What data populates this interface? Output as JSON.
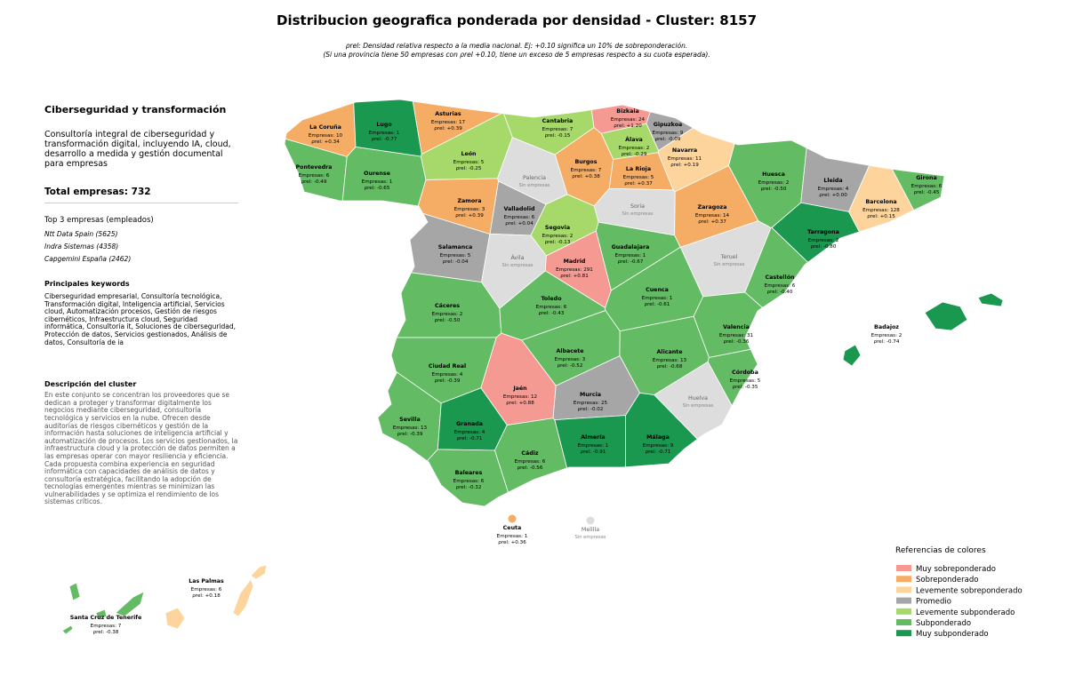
{
  "chart_data": {
    "type": "choropleth",
    "title": "Distribucion geografica ponderada por densidad - Cluster: 8157",
    "subtitle": [
      "ρrel: Densidad relativa respecto a la media nacional. Ej: +0.10 significa un 10% de sobreponderación.",
      "(Si una provincia tiene 50 empresas con ρrel +0.10, tiene un exceso de 5 empresas respecto a su cuota esperada)."
    ],
    "panel": {
      "heading": "Ciberseguridad y transformación",
      "summary": "Consultoría integral de ciberseguridad y transformación digital, incluyendo IA, cloud, desarrollo a medida y gestión documental para empresas",
      "total_label": "Total empresas:",
      "total": 732,
      "top_title": "Top 3 empresas (empleados)",
      "top": [
        "Ntt Data Spain (5625)",
        "Indra Sistemas (4358)",
        "Capgemini España (2462)"
      ],
      "keywords_title": "Principales keywords",
      "keywords": "Ciberseguridad empresarial, Consultoría tecnológica, Transformación digital, Inteligencia artificial, Servicios cloud, Automatización procesos, Gestión de riesgos cibernéticos, Infraestructura cloud, Seguridad informática, Consultoría it, Soluciones de ciberseguridad, Protección de datos, Servicios gestionados, Análisis de datos, Consultoría de ia",
      "description_title": "Descripción del cluster",
      "description": "En este conjunto se concentran los proveedores que se dedican a proteger y transformar digitalmente los negocios mediante ciberseguridad, consultoría tecnológica y servicios en la nube. Ofrecen desde auditorías de riesgos cibernéticos y gestión de la información hasta soluciones de inteligencia artificial y automatización de procesos. Los servicios gestionados, la infraestructura cloud y la protección de datos permiten a las empresas operar con mayor resiliencia y eficiencia. Cada propuesta combina experiencia en seguridad informática con capacidades de análisis de datos y consultoría estratégica, facilitando la adopción de tecnologías emergentes mientras se minimizan las vulnerabilidades y se optimiza el rendimiento de los sistemas críticos."
    },
    "empresas_label": "Empresas:",
    "rho_label": "ρrel:",
    "no_data_label": "Sin empresas",
    "no_data_color": "#dddddd",
    "legend_title": "Referencias de colores",
    "legend": [
      {
        "name": "Muy sobreponderado",
        "color": "#f59a92"
      },
      {
        "name": "Sobreponderado",
        "color": "#f5ad66"
      },
      {
        "name": "Levemente sobreponderado",
        "color": "#fdd49c"
      },
      {
        "name": "Promedio",
        "color": "#a6a6a6"
      },
      {
        "name": "Levemente subponderado",
        "color": "#a6d96a"
      },
      {
        "name": "Subponderado",
        "color": "#63bb63"
      },
      {
        "name": "Muy subponderado",
        "color": "#1a9850"
      }
    ],
    "provinces": [
      {
        "name": "La Coruña",
        "empresas": 10,
        "rho": 0.34,
        "rho_label": "+0.34",
        "category": "Sobreponderado"
      },
      {
        "name": "Lugo",
        "empresas": 1,
        "rho": -0.77,
        "rho_label": "-0.77",
        "category": "Muy subponderado"
      },
      {
        "name": "Asturias",
        "empresas": 17,
        "rho": 0.39,
        "rho_label": "+0.39",
        "category": "Sobreponderado"
      },
      {
        "name": "Cantabria",
        "empresas": 7,
        "rho": -0.15,
        "rho_label": "-0.15",
        "category": "Levemente subponderado"
      },
      {
        "name": "Bizkaia",
        "empresas": 24,
        "rho": 1.2,
        "rho_label": "+1.20",
        "category": "Muy sobreponderado"
      },
      {
        "name": "Gipuzkoa",
        "empresas": 9,
        "rho": -0.09,
        "rho_label": "-0.09",
        "category": "Promedio"
      },
      {
        "name": "Álava",
        "empresas": 2,
        "rho": -0.29,
        "rho_label": "-0.29",
        "category": "Levemente subponderado"
      },
      {
        "name": "Navarra",
        "empresas": 11,
        "rho": 0.19,
        "rho_label": "+0.19",
        "category": "Levemente sobreponderado"
      },
      {
        "name": "Pontevedra",
        "empresas": 6,
        "rho": -0.49,
        "rho_label": "-0.49",
        "category": "Subponderado"
      },
      {
        "name": "Ourense",
        "empresas": 1,
        "rho": -0.65,
        "rho_label": "-0.65",
        "category": "Subponderado"
      },
      {
        "name": "León",
        "empresas": 5,
        "rho": -0.25,
        "rho_label": "-0.25",
        "category": "Levemente subponderado"
      },
      {
        "name": "Burgos",
        "empresas": 7,
        "rho": 0.38,
        "rho_label": "+0.38",
        "category": "Sobreponderado"
      },
      {
        "name": "La Rioja",
        "empresas": 5,
        "rho": 0.37,
        "rho_label": "+0.37",
        "category": "Sobreponderado"
      },
      {
        "name": "Palencia"
      },
      {
        "name": "Huesca",
        "empresas": 2,
        "rho": -0.5,
        "rho_label": "-0.50",
        "category": "Subponderado"
      },
      {
        "name": "Lleida",
        "empresas": 4,
        "rho": 0.0,
        "rho_label": "+0.00",
        "category": "Promedio"
      },
      {
        "name": "Girona",
        "empresas": 6,
        "rho": -0.45,
        "rho_label": "-0.45",
        "category": "Subponderado"
      },
      {
        "name": "Zamora",
        "empresas": 3,
        "rho": 0.39,
        "rho_label": "+0.39",
        "category": "Sobreponderado"
      },
      {
        "name": "Valladolid",
        "empresas": 6,
        "rho": 0.04,
        "rho_label": "+0.04",
        "category": "Promedio"
      },
      {
        "name": "Soria"
      },
      {
        "name": "Zaragoza",
        "empresas": 14,
        "rho": 0.37,
        "rho_label": "+0.37",
        "category": "Sobreponderado"
      },
      {
        "name": "Barcelona",
        "empresas": 128,
        "rho": 0.15,
        "rho_label": "+0.15",
        "category": "Levemente sobreponderado"
      },
      {
        "name": "Tarragona",
        "empresas": 2,
        "rho": -0.8,
        "rho_label": "-0.80",
        "category": "Muy subponderado"
      },
      {
        "name": "Segovia",
        "empresas": 2,
        "rho": -0.13,
        "rho_label": "-0.13",
        "category": "Levemente subponderado"
      },
      {
        "name": "Salamanca",
        "empresas": 5,
        "rho": -0.04,
        "rho_label": "-0.04",
        "category": "Promedio"
      },
      {
        "name": "Ávila"
      },
      {
        "name": "Madrid",
        "empresas": 291,
        "rho": 0.81,
        "rho_label": "+0.81",
        "category": "Muy sobreponderado"
      },
      {
        "name": "Guadalajara",
        "empresas": 1,
        "rho": -0.67,
        "rho_label": "-0.67",
        "category": "Subponderado"
      },
      {
        "name": "Teruel"
      },
      {
        "name": "Castellón",
        "empresas": 6,
        "rho": -0.4,
        "rho_label": "-0.40",
        "category": "Subponderado"
      },
      {
        "name": "Cáceres",
        "empresas": 2,
        "rho": -0.5,
        "rho_label": "-0.50",
        "category": "Subponderado"
      },
      {
        "name": "Toledo",
        "empresas": 6,
        "rho": -0.43,
        "rho_label": "-0.43",
        "category": "Subponderado"
      },
      {
        "name": "Cuenca",
        "empresas": 1,
        "rho": -0.61,
        "rho_label": "-0.61",
        "category": "Subponderado"
      },
      {
        "name": "Valencia",
        "empresas": 31,
        "rho": -0.36,
        "rho_label": "-0.36",
        "category": "Subponderado"
      },
      {
        "name": "Badajoz",
        "empresas": 2,
        "rho": -0.74,
        "rho_label": "-0.74",
        "category": "Muy subponderado"
      },
      {
        "name": "Ciudad Real",
        "empresas": 4,
        "rho": -0.39,
        "rho_label": "-0.39",
        "category": "Subponderado"
      },
      {
        "name": "Albacete",
        "empresas": 3,
        "rho": -0.52,
        "rho_label": "-0.52",
        "category": "Subponderado"
      },
      {
        "name": "Alicante",
        "empresas": 13,
        "rho": -0.68,
        "rho_label": "-0.68",
        "category": "Subponderado"
      },
      {
        "name": "Córdoba",
        "empresas": 5,
        "rho": -0.35,
        "rho_label": "-0.35",
        "category": "Subponderado"
      },
      {
        "name": "Jaén",
        "empresas": 12,
        "rho": 0.88,
        "rho_label": "+0.88",
        "category": "Muy sobreponderado"
      },
      {
        "name": "Murcia",
        "empresas": 25,
        "rho": -0.02,
        "rho_label": "-0.02",
        "category": "Promedio"
      },
      {
        "name": "Huelva"
      },
      {
        "name": "Sevilla",
        "empresas": 13,
        "rho": -0.39,
        "rho_label": "-0.39",
        "category": "Subponderado"
      },
      {
        "name": "Granada",
        "empresas": 4,
        "rho": -0.71,
        "rho_label": "-0.71",
        "category": "Muy subponderado"
      },
      {
        "name": "Almería",
        "empresas": 1,
        "rho": -0.91,
        "rho_label": "-0.91",
        "category": "Muy subponderado"
      },
      {
        "name": "Málaga",
        "empresas": 9,
        "rho": -0.71,
        "rho_label": "-0.71",
        "category": "Muy subponderado"
      },
      {
        "name": "Cádiz",
        "empresas": 6,
        "rho": -0.56,
        "rho_label": "-0.56",
        "category": "Subponderado"
      },
      {
        "name": "Baleares",
        "empresas": 6,
        "rho": -0.32,
        "rho_label": "-0.32",
        "category": "Subponderado"
      },
      {
        "name": "Ceuta",
        "empresas": 1,
        "rho": 0.36,
        "rho_label": "+0.36",
        "category": "Sobreponderado"
      },
      {
        "name": "Melilla"
      },
      {
        "name": "Las Palmas",
        "empresas": 6,
        "rho": 0.18,
        "rho_label": "+0.18",
        "category": "Levemente sobreponderado"
      },
      {
        "name": "Santa Cruz de Tenerife",
        "empresas": 7,
        "rho": -0.38,
        "rho_label": "-0.38",
        "category": "Subponderado"
      }
    ]
  }
}
